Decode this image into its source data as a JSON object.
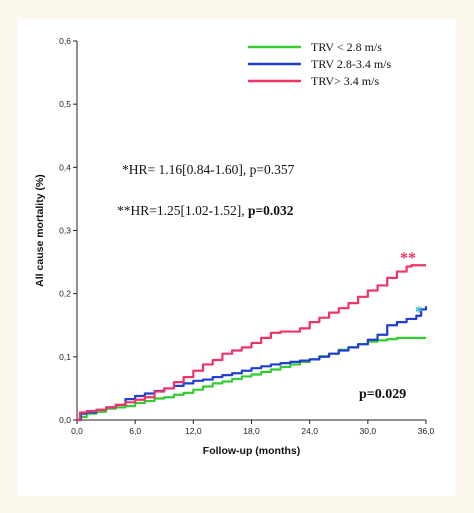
{
  "chart_data": {
    "type": "line",
    "title": "",
    "xlabel": "Follow-up (months)",
    "ylabel": "All cause mortality (%)",
    "xlim": [
      0,
      36
    ],
    "ylim": [
      0,
      0.6
    ],
    "x_ticks": [
      "0,0",
      "6,0",
      "12,0",
      "18,0",
      "24,0",
      "30,0",
      "36,0"
    ],
    "y_ticks": [
      "0,0",
      "0,1",
      "0,2",
      "0,3",
      "0,4",
      "0,5",
      "0,6"
    ],
    "grid": false,
    "legend_position": "top-right",
    "series": [
      {
        "name": "TRV < 2.8 m/s",
        "color": "#33cc33",
        "points": [
          [
            0,
            0
          ],
          [
            0.3,
            0.005
          ],
          [
            1,
            0.01
          ],
          [
            2,
            0.013
          ],
          [
            3,
            0.018
          ],
          [
            4,
            0.02
          ],
          [
            5,
            0.022
          ],
          [
            6,
            0.027
          ],
          [
            7,
            0.03
          ],
          [
            8,
            0.034
          ],
          [
            9,
            0.036
          ],
          [
            10,
            0.04
          ],
          [
            11,
            0.043
          ],
          [
            12,
            0.048
          ],
          [
            13,
            0.053
          ],
          [
            14,
            0.058
          ],
          [
            15,
            0.061
          ],
          [
            16,
            0.065
          ],
          [
            17,
            0.069
          ],
          [
            18,
            0.072
          ],
          [
            19,
            0.076
          ],
          [
            20,
            0.08
          ],
          [
            21,
            0.084
          ],
          [
            22,
            0.088
          ],
          [
            23,
            0.092
          ],
          [
            24,
            0.096
          ],
          [
            25,
            0.101
          ],
          [
            26,
            0.105
          ],
          [
            27,
            0.111
          ],
          [
            28,
            0.115
          ],
          [
            29,
            0.12
          ],
          [
            30,
            0.124
          ],
          [
            31,
            0.126
          ],
          [
            32,
            0.128
          ],
          [
            33,
            0.13
          ],
          [
            36,
            0.13
          ]
        ]
      },
      {
        "name": "TRV 2.8-3.4 m/s",
        "color": "#1f3fd4",
        "points": [
          [
            0,
            0
          ],
          [
            0.4,
            0.01
          ],
          [
            1,
            0.012
          ],
          [
            2,
            0.016
          ],
          [
            3,
            0.02
          ],
          [
            4,
            0.024
          ],
          [
            5,
            0.033
          ],
          [
            6,
            0.038
          ],
          [
            7,
            0.042
          ],
          [
            8,
            0.046
          ],
          [
            9,
            0.05
          ],
          [
            10,
            0.054
          ],
          [
            11,
            0.058
          ],
          [
            12,
            0.062
          ],
          [
            13,
            0.064
          ],
          [
            14,
            0.068
          ],
          [
            15,
            0.071
          ],
          [
            16,
            0.074
          ],
          [
            17,
            0.078
          ],
          [
            18,
            0.082
          ],
          [
            19,
            0.085
          ],
          [
            20,
            0.088
          ],
          [
            21,
            0.09
          ],
          [
            22,
            0.092
          ],
          [
            23,
            0.094
          ],
          [
            24,
            0.096
          ],
          [
            25,
            0.1
          ],
          [
            26,
            0.105
          ],
          [
            27,
            0.11
          ],
          [
            28,
            0.115
          ],
          [
            29,
            0.12
          ],
          [
            30,
            0.127
          ],
          [
            31,
            0.135
          ],
          [
            32,
            0.15
          ],
          [
            33,
            0.155
          ],
          [
            34,
            0.16
          ],
          [
            35,
            0.165
          ],
          [
            35.5,
            0.175
          ],
          [
            36,
            0.18
          ]
        ]
      },
      {
        "name": "TRV> 3.4 m/s",
        "color": "#ee3366",
        "points": [
          [
            0,
            0
          ],
          [
            0.3,
            0.012
          ],
          [
            1,
            0.014
          ],
          [
            2,
            0.016
          ],
          [
            3,
            0.02
          ],
          [
            4,
            0.024
          ],
          [
            5,
            0.028
          ],
          [
            6,
            0.032
          ],
          [
            7,
            0.036
          ],
          [
            8,
            0.045
          ],
          [
            9,
            0.05
          ],
          [
            10,
            0.06
          ],
          [
            11,
            0.068
          ],
          [
            12,
            0.078
          ],
          [
            13,
            0.088
          ],
          [
            14,
            0.095
          ],
          [
            15,
            0.105
          ],
          [
            16,
            0.11
          ],
          [
            17,
            0.115
          ],
          [
            18,
            0.122
          ],
          [
            19,
            0.13
          ],
          [
            20,
            0.138
          ],
          [
            21,
            0.14
          ],
          [
            22,
            0.14
          ],
          [
            23,
            0.145
          ],
          [
            24,
            0.155
          ],
          [
            25,
            0.162
          ],
          [
            26,
            0.17
          ],
          [
            27,
            0.177
          ],
          [
            28,
            0.185
          ],
          [
            29,
            0.195
          ],
          [
            30,
            0.205
          ],
          [
            31,
            0.213
          ],
          [
            32,
            0.225
          ],
          [
            33,
            0.235
          ],
          [
            34,
            0.243
          ],
          [
            34.5,
            0.245
          ],
          [
            36,
            0.245
          ]
        ]
      }
    ],
    "annotations": [
      {
        "text": "*HR= 1.16[0.84-1.60], p=0.357"
      },
      {
        "text_main": "**HR=1.25[1.02-1.52], ",
        "text_bold": "p=0.032"
      },
      {
        "text": "p=0.029"
      }
    ],
    "markers": [
      {
        "text": "**",
        "color": "#ee3366"
      },
      {
        "text": "*",
        "color": "#22aacc"
      }
    ]
  }
}
